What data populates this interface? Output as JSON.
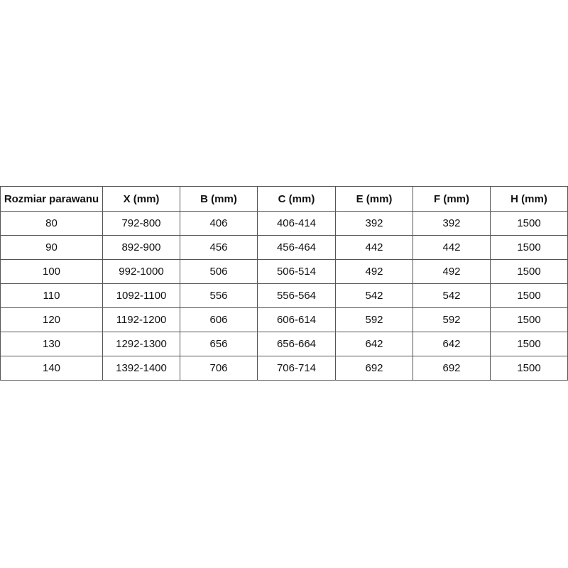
{
  "table": {
    "header": [
      "Rozmiar parawanu",
      "X (mm)",
      "B (mm)",
      "C (mm)",
      "E (mm)",
      "F (mm)",
      "H (mm)"
    ],
    "rows": [
      [
        80,
        "792-800",
        406,
        "406-414",
        392,
        392,
        1500
      ],
      [
        90,
        "892-900",
        456,
        "456-464",
        442,
        442,
        1500
      ],
      [
        100,
        "992-1000",
        506,
        "506-514",
        492,
        492,
        1500
      ],
      [
        110,
        "1092-1100",
        556,
        "556-564",
        542,
        542,
        1500
      ],
      [
        120,
        "1192-1200",
        606,
        "606-614",
        592,
        592,
        1500
      ],
      [
        130,
        "1292-1300",
        656,
        "656-664",
        642,
        642,
        1500
      ],
      [
        140,
        "1392-1400",
        706,
        "706-714",
        692,
        692,
        1500
      ]
    ]
  }
}
